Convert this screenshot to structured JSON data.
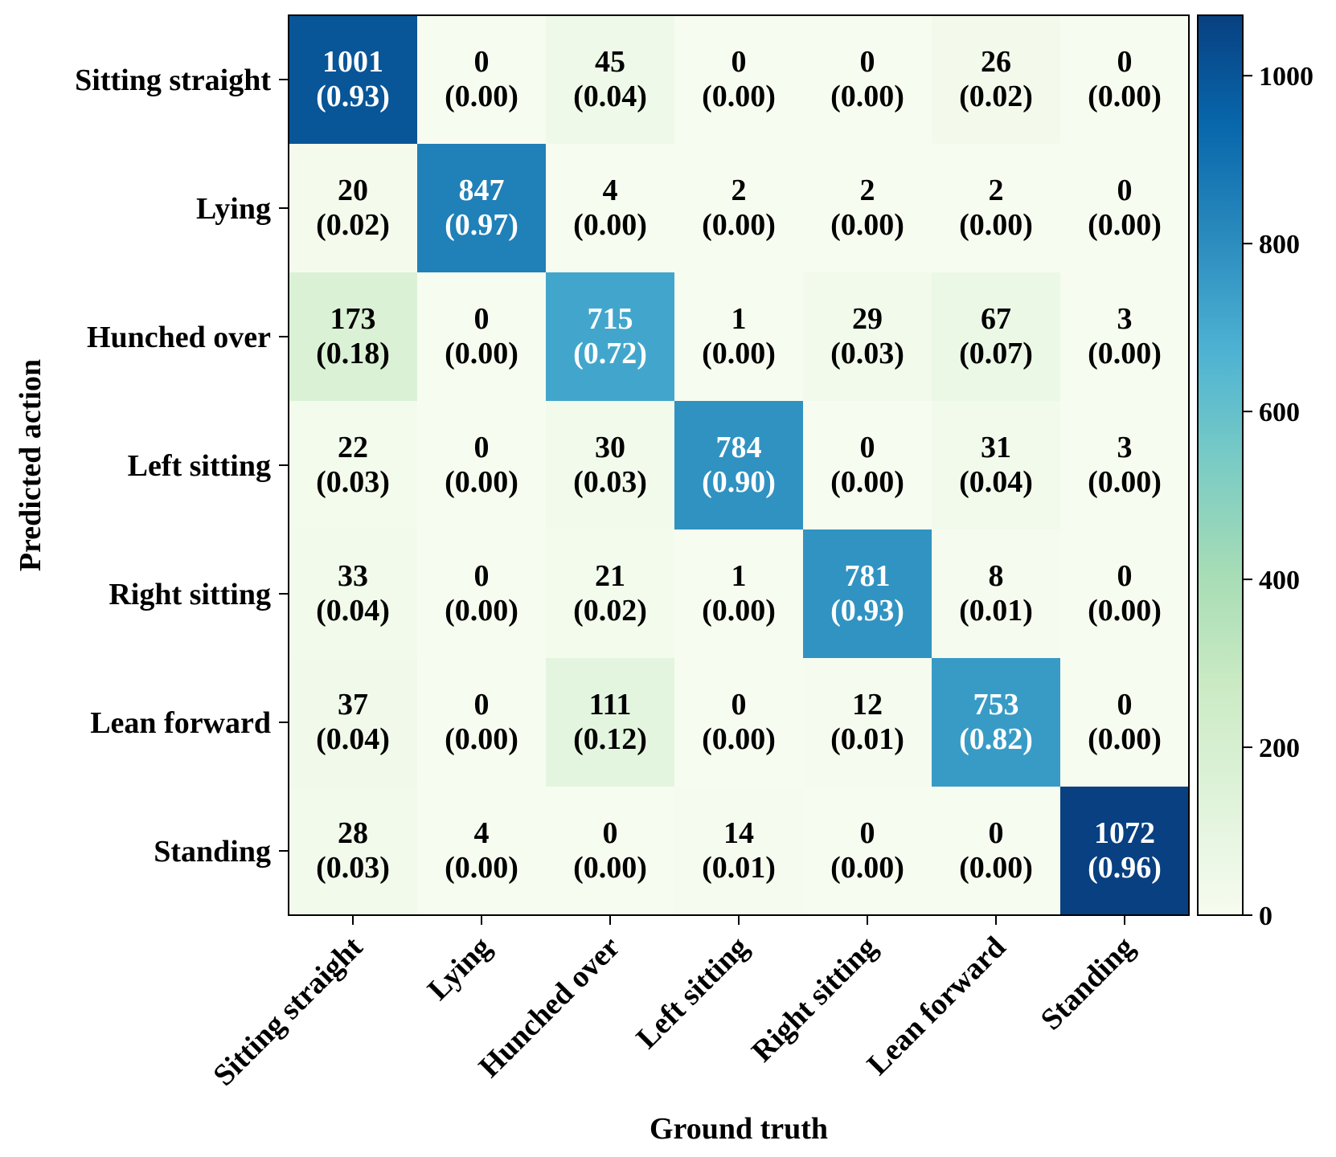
{
  "chart_data": {
    "type": "heatmap",
    "title": "",
    "xlabel": "Ground truth",
    "ylabel": "Predicted action",
    "row_labels": [
      "Sitting straight",
      "Lying",
      "Hunched over",
      "Left sitting",
      "Right sitting",
      "Lean forward",
      "Standing"
    ],
    "col_labels": [
      "Sitting straight",
      "Lying",
      "Hunched over",
      "Left sitting",
      "Right sitting",
      "Lean forward",
      "Standing"
    ],
    "counts": [
      [
        1001,
        0,
        45,
        0,
        0,
        26,
        0
      ],
      [
        20,
        847,
        4,
        2,
        2,
        2,
        0
      ],
      [
        173,
        0,
        715,
        1,
        29,
        67,
        3
      ],
      [
        22,
        0,
        30,
        784,
        0,
        31,
        3
      ],
      [
        33,
        0,
        21,
        1,
        781,
        8,
        0
      ],
      [
        37,
        0,
        111,
        0,
        12,
        753,
        0
      ],
      [
        28,
        4,
        0,
        14,
        0,
        0,
        1072
      ]
    ],
    "ratios": [
      [
        "(0.93)",
        "(0.00)",
        "(0.04)",
        "(0.00)",
        "(0.00)",
        "(0.02)",
        "(0.00)"
      ],
      [
        "(0.02)",
        "(0.97)",
        "(0.00)",
        "(0.00)",
        "(0.00)",
        "(0.00)",
        "(0.00)"
      ],
      [
        "(0.18)",
        "(0.00)",
        "(0.72)",
        "(0.00)",
        "(0.03)",
        "(0.07)",
        "(0.00)"
      ],
      [
        "(0.03)",
        "(0.00)",
        "(0.03)",
        "(0.90)",
        "(0.00)",
        "(0.04)",
        "(0.00)"
      ],
      [
        "(0.04)",
        "(0.00)",
        "(0.02)",
        "(0.00)",
        "(0.93)",
        "(0.01)",
        "(0.00)"
      ],
      [
        "(0.04)",
        "(0.00)",
        "(0.12)",
        "(0.00)",
        "(0.01)",
        "(0.82)",
        "(0.00)"
      ],
      [
        "(0.03)",
        "(0.00)",
        "(0.00)",
        "(0.01)",
        "(0.00)",
        "(0.00)",
        "(0.96)"
      ]
    ],
    "colormap": "GnBu",
    "color_range": [
      0,
      1072
    ],
    "colorbar": {
      "ticks": [
        0,
        200,
        400,
        600,
        800,
        1000
      ],
      "labels": [
        "0",
        "200",
        "400",
        "600",
        "800",
        "1000"
      ]
    },
    "text_color_threshold": 536,
    "colors": {
      "light_text": "#ffffff",
      "dark_text": "#000000",
      "gnbu_stops": [
        "#f7fcf0",
        "#e0f3db",
        "#ccebc5",
        "#a8ddb5",
        "#7bccc4",
        "#4eb3d3",
        "#2b8cbe",
        "#0868ac",
        "#084081"
      ]
    }
  }
}
